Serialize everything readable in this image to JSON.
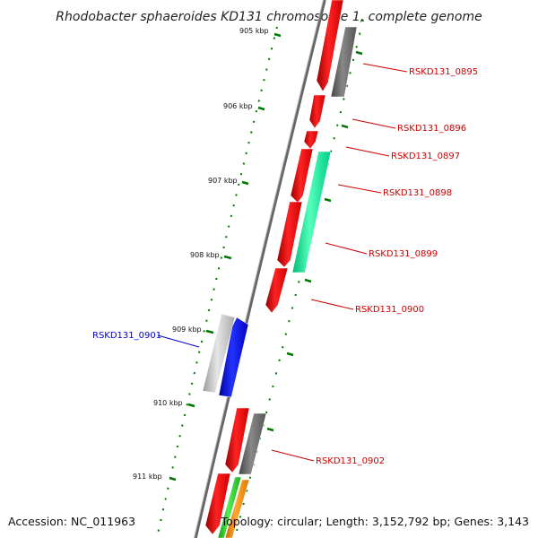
{
  "title": "Rhodobacter sphaeroides KD131 chromosome 1, complete genome",
  "accession": "Accession: NC_011963",
  "topology": "Topology: circular; Length: 3,152,792 bp; Genes: 3,143",
  "ticks": [
    "905 kbp",
    "906 kbp",
    "907 kbp",
    "908 kbp",
    "909 kbp",
    "910 kbp",
    "911 kbp"
  ],
  "gene_labels": [
    {
      "text": "RSKD131_0895",
      "color": "#cc0000"
    },
    {
      "text": "RSKD131_0896",
      "color": "#cc0000"
    },
    {
      "text": "RSKD131_0897",
      "color": "#cc0000"
    },
    {
      "text": "RSKD131_0898",
      "color": "#cc0000"
    },
    {
      "text": "RSKD131_0899",
      "color": "#cc0000"
    },
    {
      "text": "RSKD131_0900",
      "color": "#cc0000"
    },
    {
      "text": "RSKD131_0901",
      "color": "#0000cc"
    },
    {
      "text": "RSKD131_0902",
      "color": "#cc0000"
    }
  ],
  "colors": {
    "cds_forward": "#ee0000",
    "rna_grey": "#666666",
    "light_grey": "#bbbbbb",
    "cyan_green": "#00ee99",
    "blue": "#0000ee",
    "green": "#33cc33",
    "orange": "#ff9900",
    "tick_green": "#007700",
    "backbone": "#777777"
  }
}
